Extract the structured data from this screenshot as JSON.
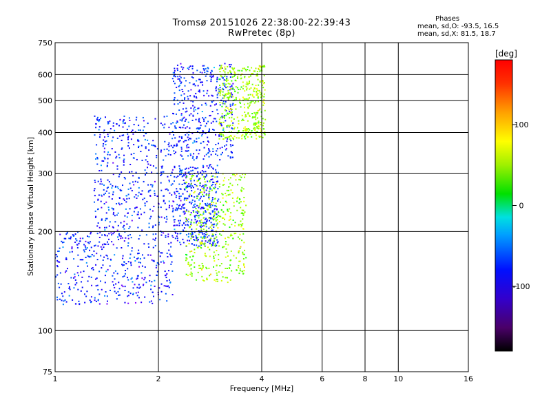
{
  "header": {
    "title_line1": "Tromsø 20151026 22:38:00-22:39:43",
    "title_line2": "RwPretec (8p)"
  },
  "phase_info": {
    "heading": "Phases",
    "line_o": "mean, sd,O: -93.5, 16.5",
    "line_x": "mean, sd,X: 81.5, 18.7"
  },
  "chart_data": {
    "type": "scatter",
    "xlabel": "Frequency [MHz]",
    "ylabel": "Stationary phase Virtual Height [km]",
    "x_scale": "log",
    "y_scale": "log",
    "xlim": [
      1,
      16
    ],
    "ylim": [
      75,
      750
    ],
    "x_ticks": [
      1,
      2,
      4,
      6,
      8,
      10,
      16
    ],
    "x_tick_labels": [
      "1",
      "2",
      "4",
      "6",
      "8",
      "10",
      "16"
    ],
    "y_ticks": [
      75,
      100,
      200,
      300,
      400,
      500,
      600,
      750
    ],
    "y_tick_labels": [
      "75",
      "100",
      "200",
      "300",
      "400",
      "500",
      "600",
      "750"
    ],
    "grid": true,
    "colorbar": {
      "label": "[deg]",
      "range": [
        -180,
        180
      ],
      "ticks": [
        100,
        0,
        -100
      ],
      "tick_labels": [
        "100",
        "0",
        "-100"
      ]
    },
    "series": [
      {
        "mode": "O",
        "phase_deg_mean": -93.5,
        "phase_deg_sd": 16.5,
        "regions": [
          {
            "freq_mhz": [
              1.0,
              2.2
            ],
            "height_km": [
              120,
              200
            ]
          },
          {
            "freq_mhz": [
              1.3,
              2.2
            ],
            "height_km": [
              200,
              450
            ]
          },
          {
            "freq_mhz": [
              2.2,
              3.3
            ],
            "height_km": [
              330,
              650
            ]
          },
          {
            "freq_mhz": [
              2.2,
              3.0
            ],
            "height_km": [
              180,
              320
            ]
          }
        ]
      },
      {
        "mode": "X",
        "phase_deg_mean": 81.5,
        "phase_deg_sd": 18.7,
        "regions": [
          {
            "freq_mhz": [
              2.4,
              3.6
            ],
            "height_km": [
              140,
              300
            ]
          },
          {
            "freq_mhz": [
              3.0,
              4.1
            ],
            "height_km": [
              380,
              640
            ]
          }
        ]
      }
    ]
  },
  "colors": {
    "o_mode": "#2b3bdc",
    "x_mode": "#d8e84a",
    "grid": "#000000"
  }
}
